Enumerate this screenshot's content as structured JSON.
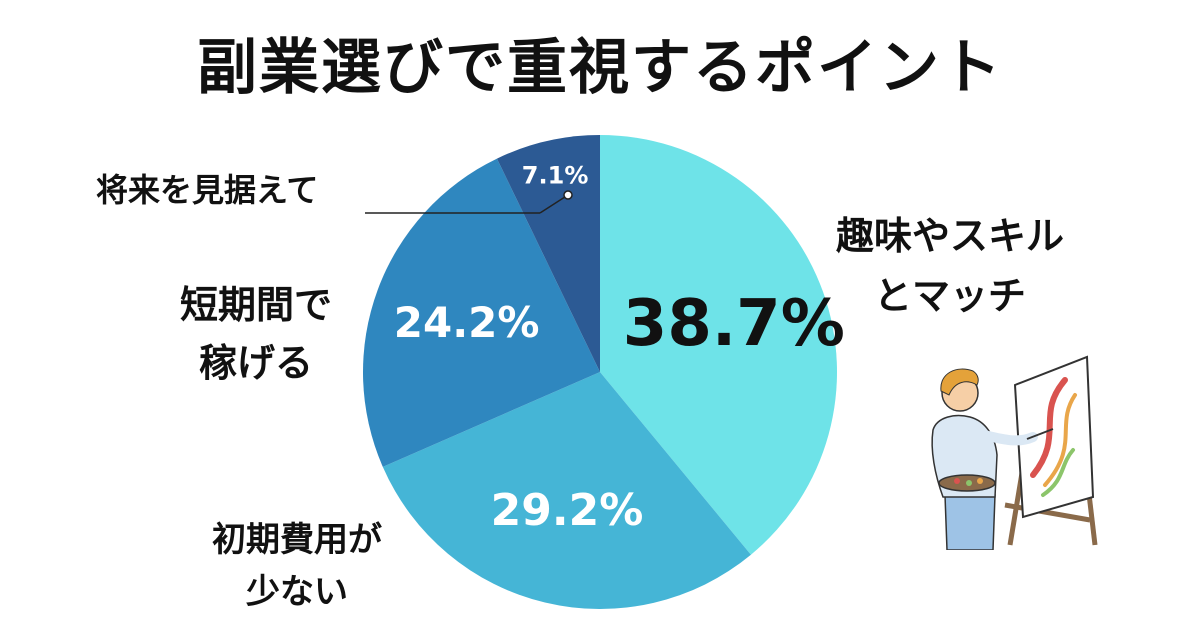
{
  "chart_data": {
    "type": "pie",
    "title": "副業選びで重視するポイント",
    "slices": [
      {
        "label_lines": [
          "趣味やスキル",
          "とマッチ"
        ],
        "value": 38.7,
        "value_label": "38.7%",
        "color": "#6ee3e8"
      },
      {
        "label_lines": [
          "初期費用が",
          "少ない"
        ],
        "value": 29.2,
        "value_label": "29.2%",
        "color": "#45b5d6"
      },
      {
        "label_lines": [
          "短期間で",
          "稼げる"
        ],
        "value": 24.2,
        "value_label": "24.2%",
        "color": "#2f87bf"
      },
      {
        "label_lines": [
          "将来を見据えて"
        ],
        "value": 7.1,
        "value_label": "7.1%",
        "color": "#2c5a94"
      }
    ],
    "start_angle_deg": 0,
    "direction": "clockwise"
  },
  "illustration": {
    "icon": "painter-at-easel-icon",
    "colors": {
      "skin": "#f6cfa6",
      "hair": "#e4a23a",
      "shirt": "#dbe8f4",
      "pants": "#9ec3e6",
      "easel": "#8a6a4a",
      "canvas": "#ffffff",
      "paint_red": "#d9534f",
      "paint_orange": "#e9a64a",
      "paint_green": "#8cc56b"
    }
  }
}
